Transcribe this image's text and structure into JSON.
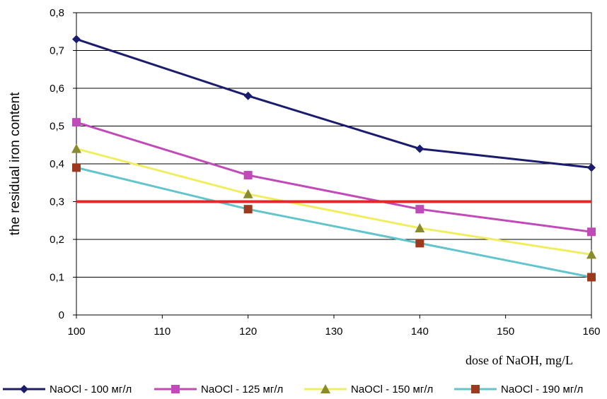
{
  "chart_data": {
    "type": "line",
    "xlabel": "dose of NaOH, mg/L",
    "ylabel": "the residual iron content",
    "x": [
      100,
      120,
      140,
      160
    ],
    "xlim": [
      100,
      160
    ],
    "ylim": [
      0,
      0.8
    ],
    "x_ticks": [
      "100",
      "110",
      "120",
      "130",
      "140",
      "150",
      "160"
    ],
    "y_ticks": [
      "0",
      "0,1",
      "0,2",
      "0,3",
      "0,4",
      "0,5",
      "0,6",
      "0,7",
      "0,8"
    ],
    "grid": "horizontal",
    "legend_position": "bottom",
    "series": [
      {
        "name": "NaOCl - 100 мг/л",
        "values": [
          0.73,
          0.58,
          0.44,
          0.39
        ],
        "line_color": "#1c1c6e",
        "marker": "diamond",
        "marker_color": "#1c1c6e"
      },
      {
        "name": "NaOCl - 125 мг/л",
        "values": [
          0.51,
          0.37,
          0.28,
          0.22
        ],
        "line_color": "#c04ab8",
        "marker": "square",
        "marker_color": "#c04ab8"
      },
      {
        "name": "NaOCl - 150 мг/л",
        "values": [
          0.44,
          0.32,
          0.23,
          0.16
        ],
        "line_color": "#f0ee60",
        "marker": "triangle",
        "marker_color": "#8a8a2e"
      },
      {
        "name": "NaOCl - 190 мг/л",
        "values": [
          0.39,
          0.28,
          0.19,
          0.1
        ],
        "line_color": "#62c4cc",
        "marker": "square",
        "marker_color": "#9c3a1e"
      }
    ],
    "reference_line": {
      "y": 0.3,
      "color": "#e8262a"
    }
  }
}
